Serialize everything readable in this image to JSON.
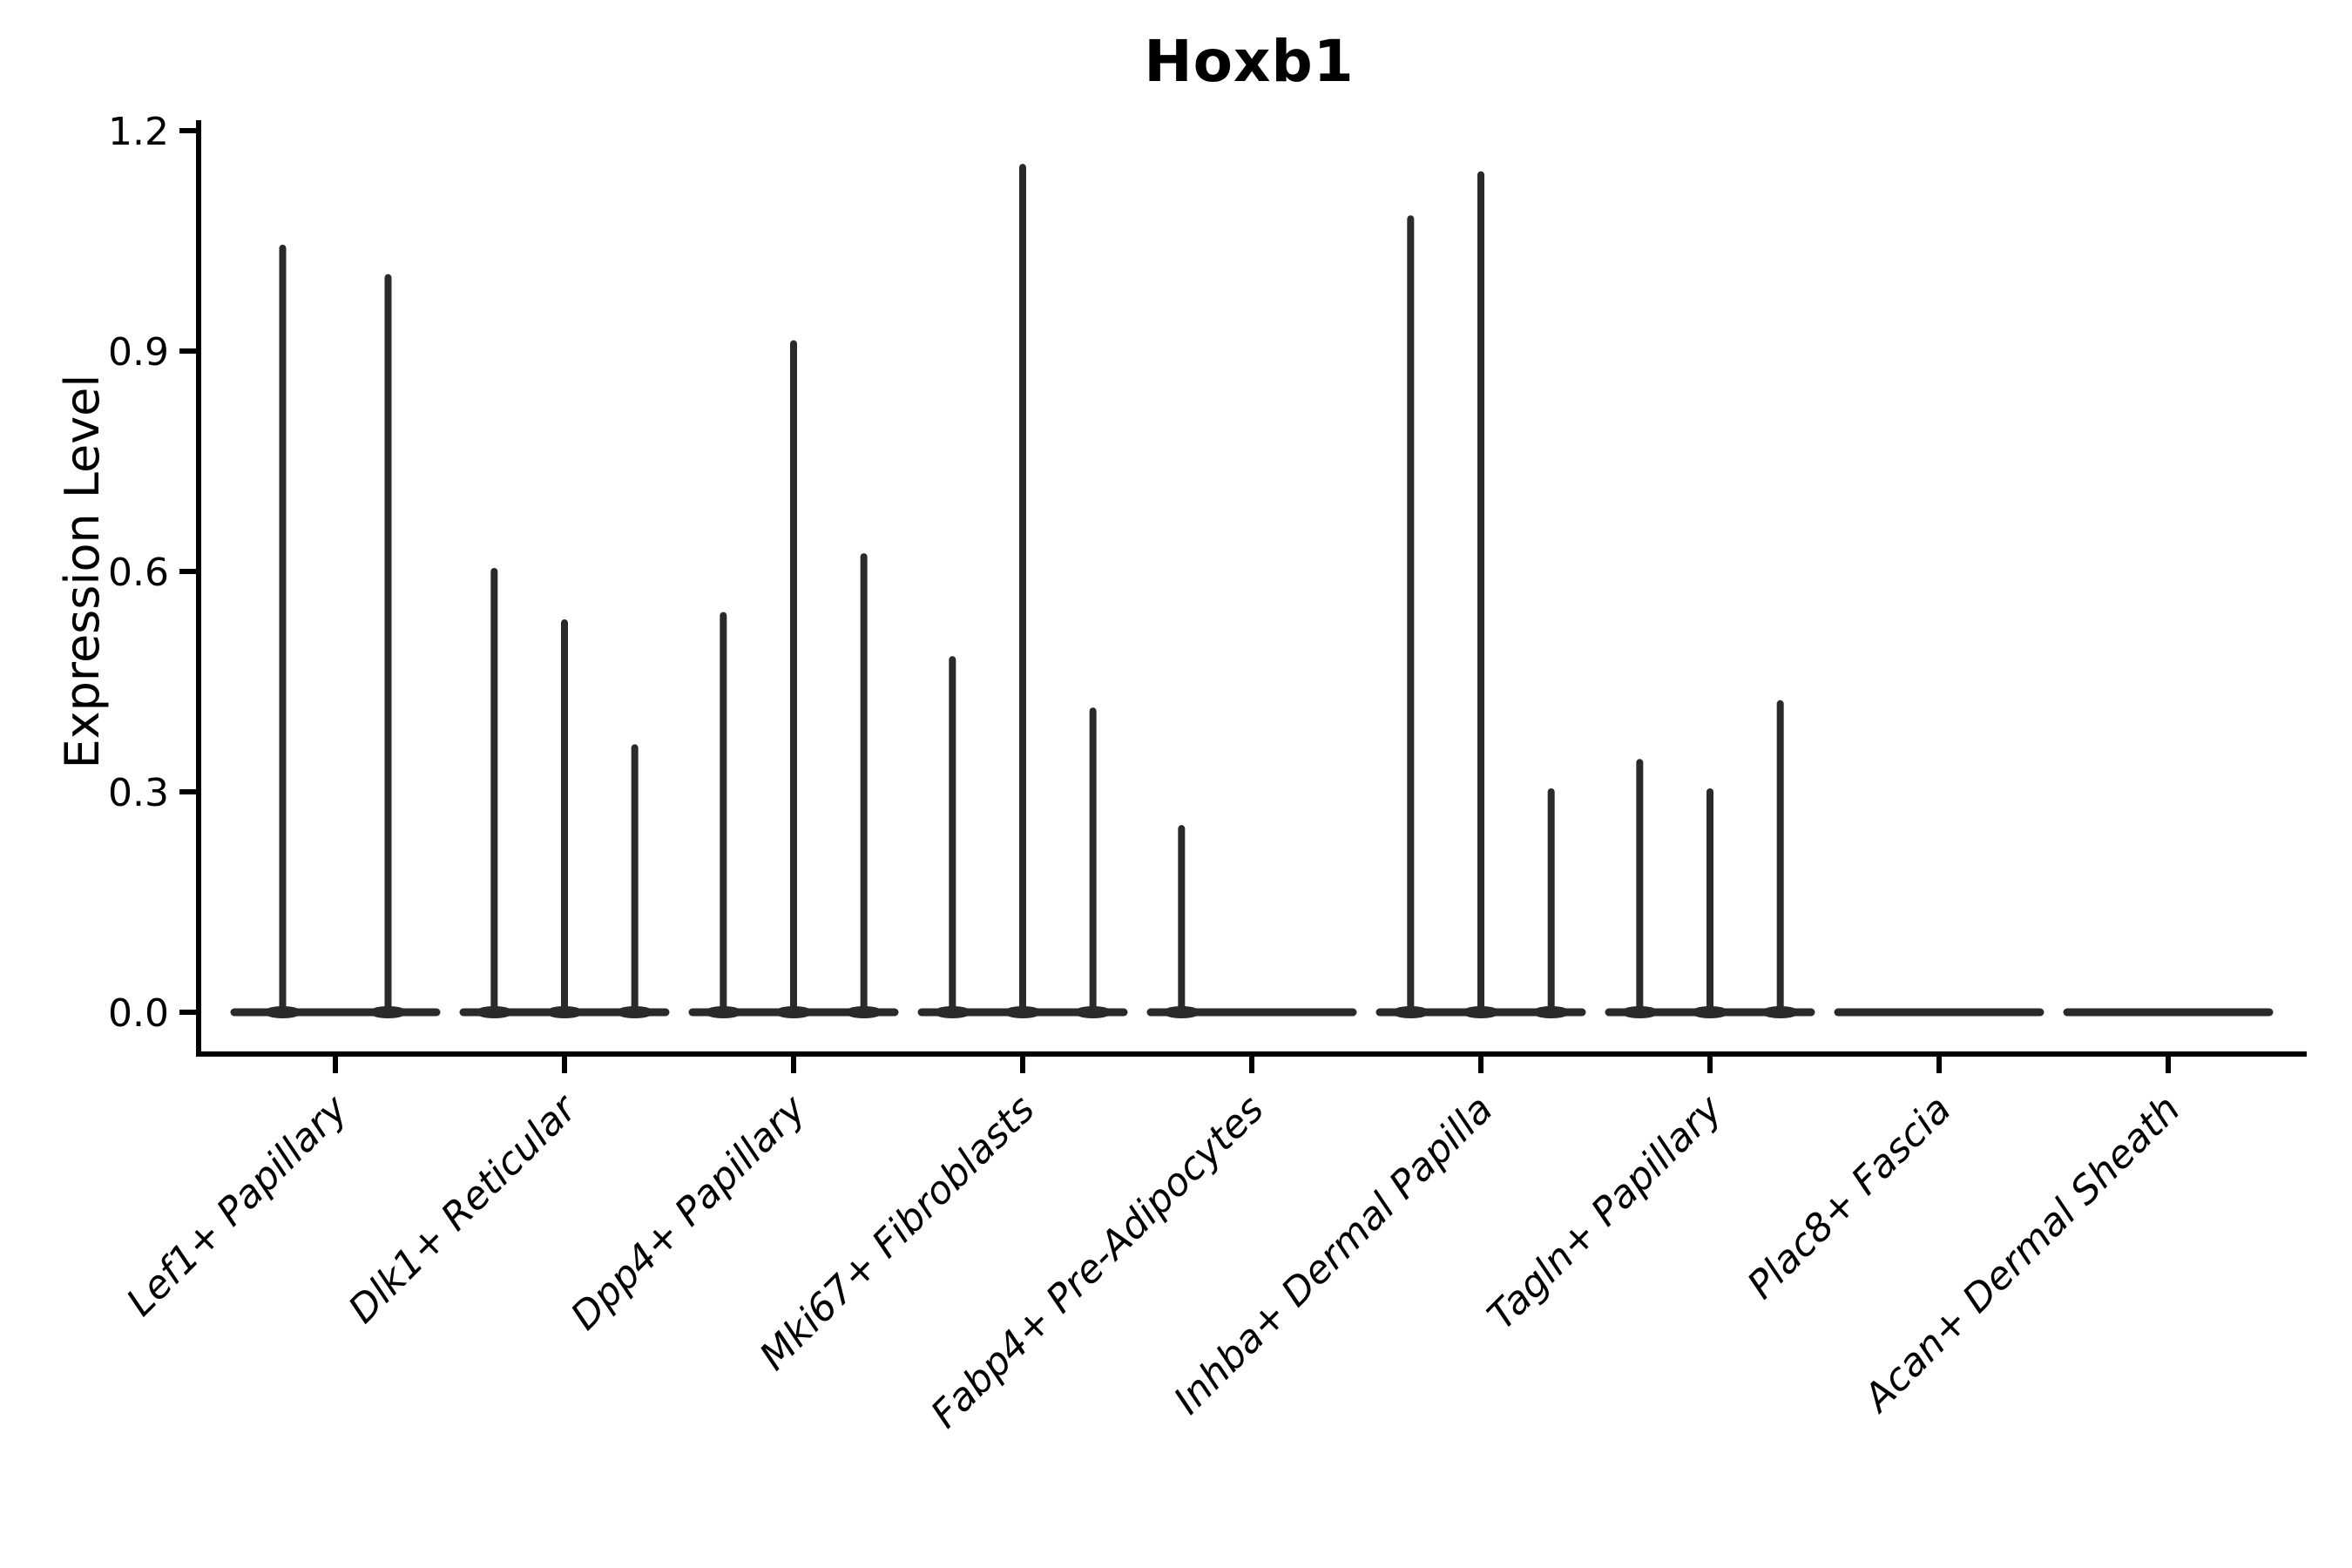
{
  "chart_data": {
    "type": "violin",
    "title": "Hoxb1",
    "xlabel": "",
    "ylabel": "Expression Level",
    "ylim": [
      0.0,
      1.2
    ],
    "yticks": [
      "0.0",
      "0.3",
      "0.6",
      "0.9",
      "1.2"
    ],
    "ytick_values": [
      0.0,
      0.3,
      0.6,
      0.9,
      1.2
    ],
    "grid": "off",
    "legend": "none",
    "x_tick_rotation": 45,
    "description": "Narrow spike-like violins of Hoxb1 expression per fibroblast cluster; each category holds 2-3 sub-violins, flat at 0 with thin spikes to the max expression value.",
    "categories": [
      {
        "label": "Lef1+ Papillary",
        "violins": [
          1.04,
          1.0
        ]
      },
      {
        "label": "Dlk1+ Reticular",
        "violins": [
          0.6,
          0.53,
          0.36
        ]
      },
      {
        "label": "Dpp4+ Papillary",
        "violins": [
          0.54,
          0.91,
          0.62
        ]
      },
      {
        "label": "Mki67+ Fibroblasts",
        "violins": [
          0.48,
          1.15,
          0.41
        ]
      },
      {
        "label": "Fabp4+ Pre-Adipocytes",
        "violins": [
          0.25,
          0.0,
          0.0
        ]
      },
      {
        "label": "Inhba+ Dermal Papilla",
        "violins": [
          1.08,
          1.14,
          0.3
        ]
      },
      {
        "label": "Tagln+ Papillary",
        "violins": [
          0.34,
          0.3,
          0.42
        ]
      },
      {
        "label": "Plac8+ Fascia",
        "violins": [
          0.0,
          0.0,
          0.0
        ]
      },
      {
        "label": "Acan+ Dermal Sheath",
        "violins": [
          0.0,
          0.0,
          0.0
        ]
      }
    ],
    "colors": {
      "background": "#ffffff",
      "axis": "#000000",
      "violin": "#2a2a2a",
      "text": "#000000"
    }
  }
}
